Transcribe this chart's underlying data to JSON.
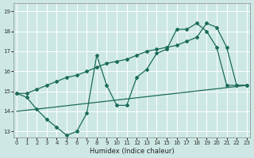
{
  "xlabel": "Humidex (Indice chaleur)",
  "xlim": [
    -0.3,
    23.3
  ],
  "ylim": [
    12.7,
    19.4
  ],
  "xticks": [
    0,
    1,
    2,
    3,
    4,
    5,
    6,
    7,
    8,
    9,
    10,
    11,
    12,
    13,
    14,
    15,
    16,
    17,
    18,
    19,
    20,
    21,
    22,
    23
  ],
  "yticks": [
    13,
    14,
    15,
    16,
    17,
    18,
    19
  ],
  "bg_color": "#cde8e4",
  "grid_color": "#b0d4d0",
  "line_color": "#1a6b5a",
  "line1_x": [
    0,
    1,
    2,
    3,
    4,
    5,
    6,
    7,
    8,
    9,
    10,
    11,
    12,
    13,
    14,
    15,
    16,
    17,
    18,
    19,
    20,
    21,
    22,
    23
  ],
  "line1_y": [
    14.9,
    14.7,
    14.1,
    13.6,
    13.2,
    12.8,
    13.0,
    13.9,
    16.8,
    15.3,
    14.3,
    14.3,
    15.7,
    16.1,
    16.9,
    17.1,
    18.1,
    18.1,
    18.4,
    18.0,
    17.2,
    15.3,
    15.3,
    15.3
  ],
  "line2_x": [
    0,
    1,
    2,
    3,
    4,
    5,
    6,
    7,
    8,
    9,
    10,
    11,
    12,
    13,
    14,
    15,
    16,
    17,
    18,
    19,
    20,
    21,
    22,
    23
  ],
  "line2_y": [
    14.9,
    14.9,
    15.1,
    15.3,
    15.5,
    15.7,
    15.8,
    16.0,
    16.2,
    16.4,
    16.5,
    16.6,
    16.8,
    17.0,
    17.1,
    17.2,
    17.3,
    17.5,
    17.7,
    18.4,
    18.2,
    17.2,
    15.3,
    15.3
  ],
  "trend_x": [
    0,
    23
  ],
  "trend_y": [
    14.0,
    15.3
  ]
}
